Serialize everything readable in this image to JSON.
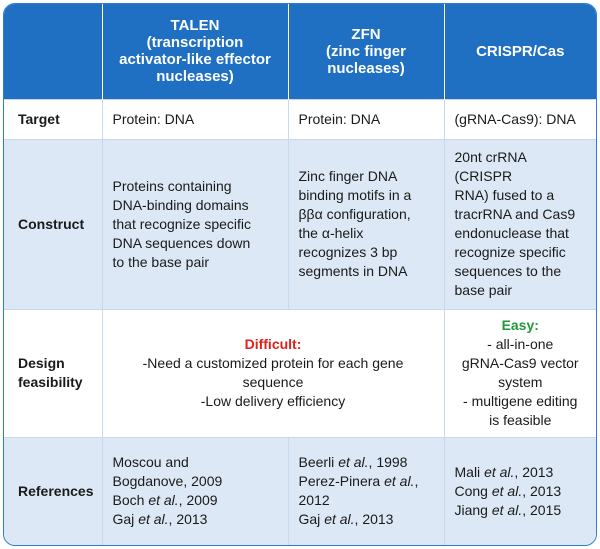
{
  "header": {
    "columns": [
      {
        "lines": [
          "TALEN",
          "(transcription",
          "activator-like effector",
          "nucleases)"
        ]
      },
      {
        "lines": [
          "ZFN",
          "(zinc finger",
          "nucleases)"
        ]
      },
      {
        "lines": [
          "CRISPR/Cas"
        ]
      }
    ]
  },
  "rows": {
    "target": {
      "label": [
        "Target"
      ],
      "cells": [
        {
          "lines": [
            "Protein: DNA"
          ]
        },
        {
          "lines": [
            "Protein: DNA"
          ]
        },
        {
          "lines": [
            "(gRNA-Cas9): DNA"
          ]
        }
      ]
    },
    "construct": {
      "label": [
        "Construct"
      ],
      "cells": [
        {
          "lines": [
            "Proteins containing",
            "DNA-binding domains",
            "that recognize specific",
            "DNA sequences down",
            "to the base pair"
          ]
        },
        {
          "lines": [
            "Zinc finger DNA",
            "binding motifs in a",
            "ββα configuration,",
            "the α-helix",
            "recognizes 3 bp",
            "segments in DNA"
          ]
        },
        {
          "lines": [
            "20nt crRNA (CRISPR",
            "RNA) fused to a",
            "tracrRNA and Cas9",
            "endonuclease that",
            "recognize specific",
            "sequences to the",
            "base pair"
          ]
        }
      ]
    },
    "design": {
      "label": [
        "Design",
        "feasibility"
      ],
      "difficult": {
        "heading": "Difficult:",
        "color": "#e0201b",
        "lines": [
          "-Need a customized protein for each gene",
          "sequence",
          "-Low delivery efficiency"
        ]
      },
      "easy": {
        "heading": "Easy:",
        "color": "#1f9a3a",
        "lines": [
          "-  all-in-one",
          "gRNA-Cas9 vector",
          "system",
          "-  multigene editing",
          "is feasible"
        ]
      }
    },
    "references": {
      "label": [
        "References"
      ],
      "cells": [
        {
          "lines": [
            "Moscou and",
            "Bogdanove, 2009",
            [
              {
                "text": "Boch "
              },
              {
                "text": "et al.",
                "italic": true
              },
              {
                "text": ", 2009"
              }
            ],
            [
              {
                "text": "Gaj "
              },
              {
                "text": "et al.",
                "italic": true
              },
              {
                "text": ", 2013"
              }
            ]
          ]
        },
        {
          "lines": [
            [
              {
                "text": "Beerli "
              },
              {
                "text": "et al.",
                "italic": true
              },
              {
                "text": ", 1998"
              }
            ],
            [
              {
                "text": "Perez-Pinera "
              },
              {
                "text": "et al.",
                "italic": true
              },
              {
                "text": ","
              }
            ],
            "2012",
            [
              {
                "text": "Gaj "
              },
              {
                "text": "et al.",
                "italic": true
              },
              {
                "text": ", 2013"
              }
            ]
          ]
        },
        {
          "lines": [
            [
              {
                "text": "Mali "
              },
              {
                "text": "et al.",
                "italic": true
              },
              {
                "text": ", 2013"
              }
            ],
            [
              {
                "text": "Cong "
              },
              {
                "text": "et al.",
                "italic": true
              },
              {
                "text": ", 2013"
              }
            ],
            [
              {
                "text": "Jiang "
              },
              {
                "text": "et al.",
                "italic": true
              },
              {
                "text": ", 2015"
              }
            ]
          ]
        }
      ]
    }
  }
}
